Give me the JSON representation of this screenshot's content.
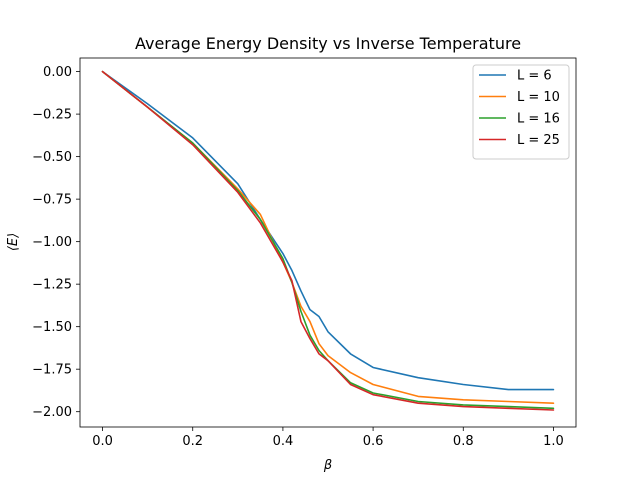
{
  "chart_data": {
    "type": "line",
    "title": "Average Energy Density vs Inverse Temperature",
    "xlabel": "β",
    "ylabel": "⟨E⟩",
    "xlim": [
      -0.05,
      1.05
    ],
    "ylim": [
      -2.09,
      0.08
    ],
    "xticks": [
      0.0,
      0.2,
      0.4,
      0.6,
      0.8,
      1.0
    ],
    "xtick_labels": [
      "0.0",
      "0.2",
      "0.4",
      "0.6",
      "0.8",
      "1.0"
    ],
    "yticks": [
      0.0,
      -0.25,
      -0.5,
      -0.75,
      -1.0,
      -1.25,
      -1.5,
      -1.75,
      -2.0
    ],
    "ytick_labels": [
      "0.00",
      "−0.25",
      "−0.50",
      "−0.75",
      "−1.00",
      "−1.25",
      "−1.50",
      "−1.75",
      "−2.00"
    ],
    "grid": false,
    "legend_position": "top-right",
    "x": [
      0.0,
      0.1,
      0.2,
      0.3,
      0.35,
      0.4,
      0.42,
      0.44,
      0.46,
      0.48,
      0.5,
      0.55,
      0.6,
      0.7,
      0.8,
      0.9,
      1.0
    ],
    "series": [
      {
        "name": "L = 6",
        "color": "#1f77b4",
        "values": [
          0.0,
          -0.19,
          -0.39,
          -0.66,
          -0.87,
          -1.07,
          -1.17,
          -1.29,
          -1.4,
          -1.44,
          -1.53,
          -1.66,
          -1.74,
          -1.8,
          -1.84,
          -1.87,
          -1.87
        ]
      },
      {
        "name": "L = 10",
        "color": "#ff7f0e",
        "values": [
          0.0,
          -0.21,
          -0.42,
          -0.69,
          -0.84,
          -1.12,
          -1.24,
          -1.38,
          -1.47,
          -1.6,
          -1.67,
          -1.77,
          -1.84,
          -1.91,
          -1.93,
          -1.94,
          -1.95
        ]
      },
      {
        "name": "L = 16",
        "color": "#2ca02c",
        "values": [
          0.0,
          -0.21,
          -0.42,
          -0.7,
          -0.87,
          -1.1,
          -1.24,
          -1.41,
          -1.55,
          -1.64,
          -1.7,
          -1.83,
          -1.89,
          -1.94,
          -1.96,
          -1.97,
          -1.98
        ]
      },
      {
        "name": "L = 25",
        "color": "#d62728",
        "values": [
          0.0,
          -0.21,
          -0.43,
          -0.71,
          -0.89,
          -1.12,
          -1.23,
          -1.47,
          -1.57,
          -1.66,
          -1.7,
          -1.84,
          -1.9,
          -1.95,
          -1.97,
          -1.98,
          -1.99
        ]
      }
    ]
  }
}
